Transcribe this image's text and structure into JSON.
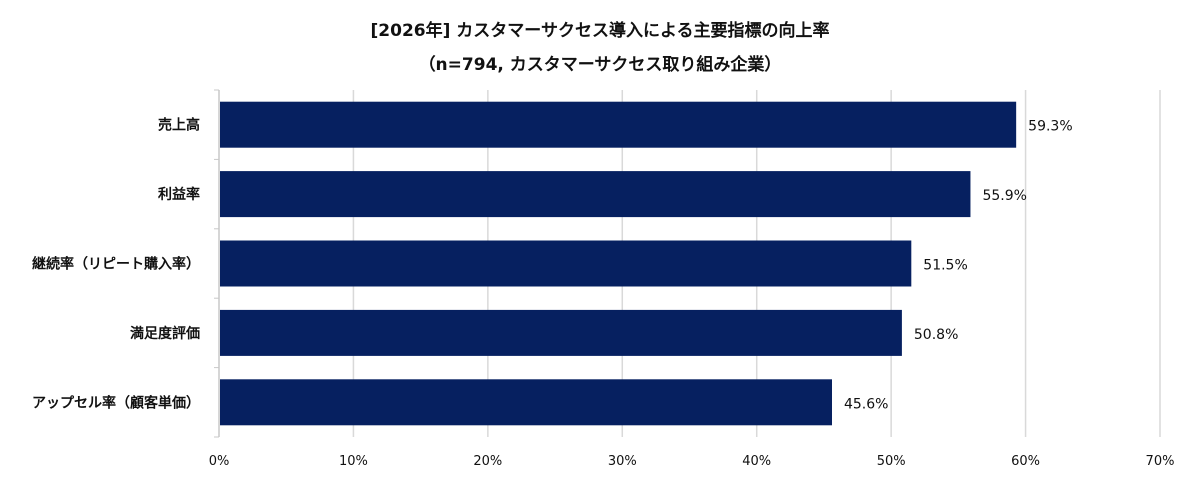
{
  "chart_data": {
    "type": "bar",
    "orientation": "horizontal",
    "title": "[2026年] カスタマーサクセス導入による主要指標の向上率",
    "subtitle": "（n=794, カスタマーサクセス取り組み企業）",
    "categories": [
      "売上高",
      "利益率",
      "継続率（リピート購入率）",
      "満足度評価",
      "アップセル率（顧客単価）"
    ],
    "values": [
      59.3,
      55.9,
      51.5,
      50.8,
      45.6
    ],
    "data_labels": [
      "59.3%",
      "55.9%",
      "51.5%",
      "50.8%",
      "45.6%"
    ],
    "xlim": [
      0,
      70
    ],
    "x_ticks": [
      "0%",
      "10%",
      "20%",
      "30%",
      "40%",
      "50%",
      "60%",
      "70%"
    ],
    "xlabel": "",
    "ylabel": "",
    "grid": "vertical",
    "legend": "none",
    "bar_color": "#062060"
  }
}
